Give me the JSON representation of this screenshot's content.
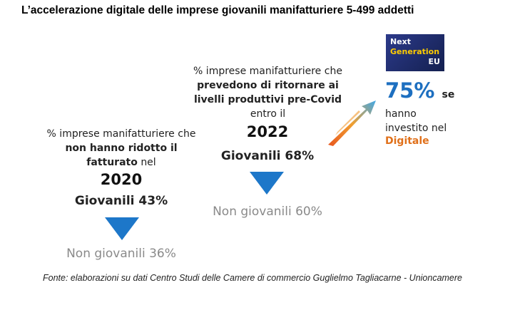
{
  "header": {
    "title": "L’accelerazione digitale delle imprese giovanili manifatturiere 5-499 addetti"
  },
  "blocks": [
    {
      "intro": "% imprese manifatturiere che",
      "highlight": "non hanno ridotto il fatturato",
      "outro": "nel",
      "year": "2020",
      "young": "Giovanili 43%",
      "others": "Non giovanili 36%"
    },
    {
      "intro": "% imprese manifatturiere che",
      "highlight": "prevedono di ritornare ai livelli produttivi pre-Covid",
      "outro": "entro il",
      "year": "2022",
      "young": "Giovanili 68%",
      "others": "Non giovanili 60%"
    }
  ],
  "badge": {
    "line1": "Next",
    "line2": "Generation",
    "line3": "EU"
  },
  "digital": {
    "value": "75%",
    "after": "se",
    "text": "hanno investito nel",
    "keyword": "Digitale"
  },
  "footer": {
    "source": "Fonte: elaborazioni su dati Centro Studi delle Camere di commercio Guglielmo Tagliacarne - Unioncamere"
  }
}
